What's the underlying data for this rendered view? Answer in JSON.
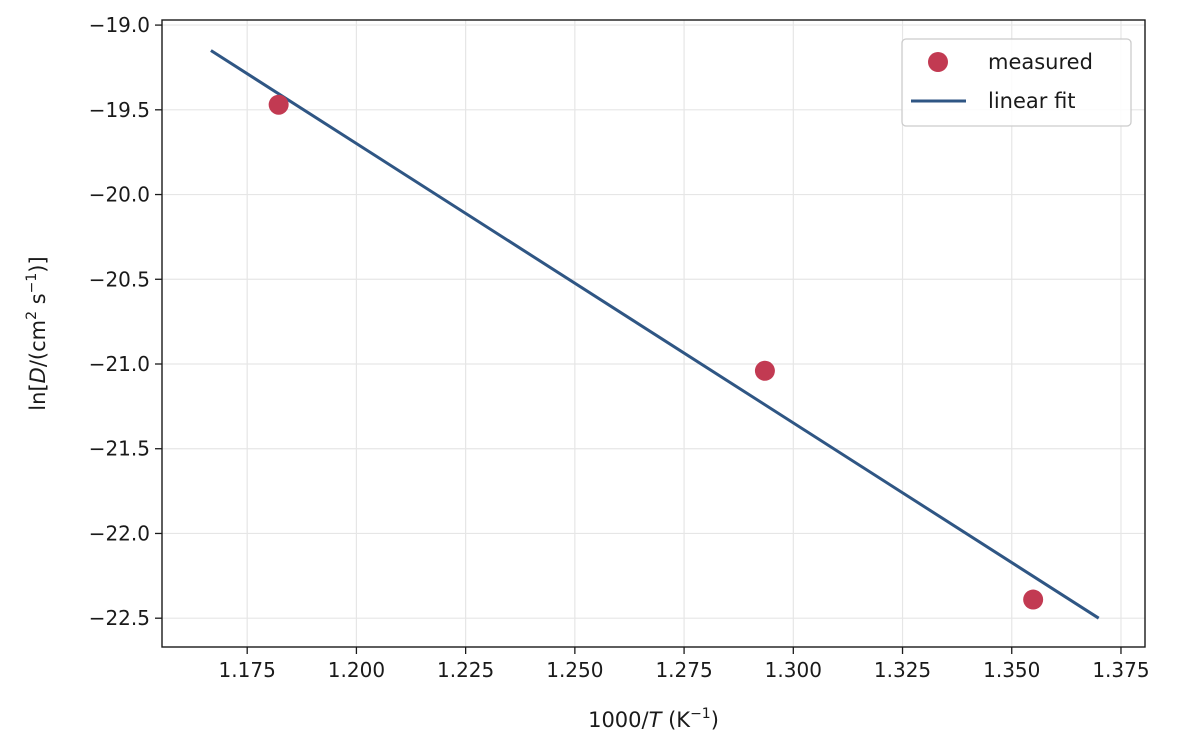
{
  "chart_data": {
    "type": "scatter",
    "xlabel": {
      "pre": "1000/",
      "var": "T",
      "unit_open": " (K",
      "unit_sup": "−1",
      "unit_close": ")"
    },
    "ylabel": {
      "pre": "ln[",
      "var": "D",
      "mid": "/(cm",
      "sup1": "2",
      "mid2": " s",
      "sup2": "−1",
      "close": ")]"
    },
    "xlim": [
      1.1555,
      1.3805
    ],
    "ylim": [
      -22.67,
      -18.97
    ],
    "xticks": [
      1.175,
      1.2,
      1.225,
      1.25,
      1.275,
      1.3,
      1.325,
      1.35,
      1.375
    ],
    "xtick_labels": [
      "1.175",
      "1.200",
      "1.225",
      "1.250",
      "1.275",
      "1.300",
      "1.325",
      "1.350",
      "1.375"
    ],
    "yticks": [
      -19.0,
      -19.5,
      -20.0,
      -20.5,
      -21.0,
      -21.5,
      -22.0,
      -22.5
    ],
    "ytick_labels": [
      "−19.0",
      "−19.5",
      "−20.0",
      "−20.5",
      "−21.0",
      "−21.5",
      "−22.0",
      "−22.5"
    ],
    "grid": true,
    "legend_position": "top-right",
    "series": [
      {
        "name": "measured",
        "kind": "scatter",
        "color": "#c23a52",
        "x": [
          1.1822,
          1.2935,
          1.3549
        ],
        "y": [
          -19.47,
          -21.04,
          -22.39
        ]
      },
      {
        "name": "linear fit",
        "kind": "line",
        "color": "#2f5684",
        "x": [
          1.1667,
          1.3699
        ],
        "y": [
          -19.15,
          -22.5
        ]
      }
    ]
  }
}
